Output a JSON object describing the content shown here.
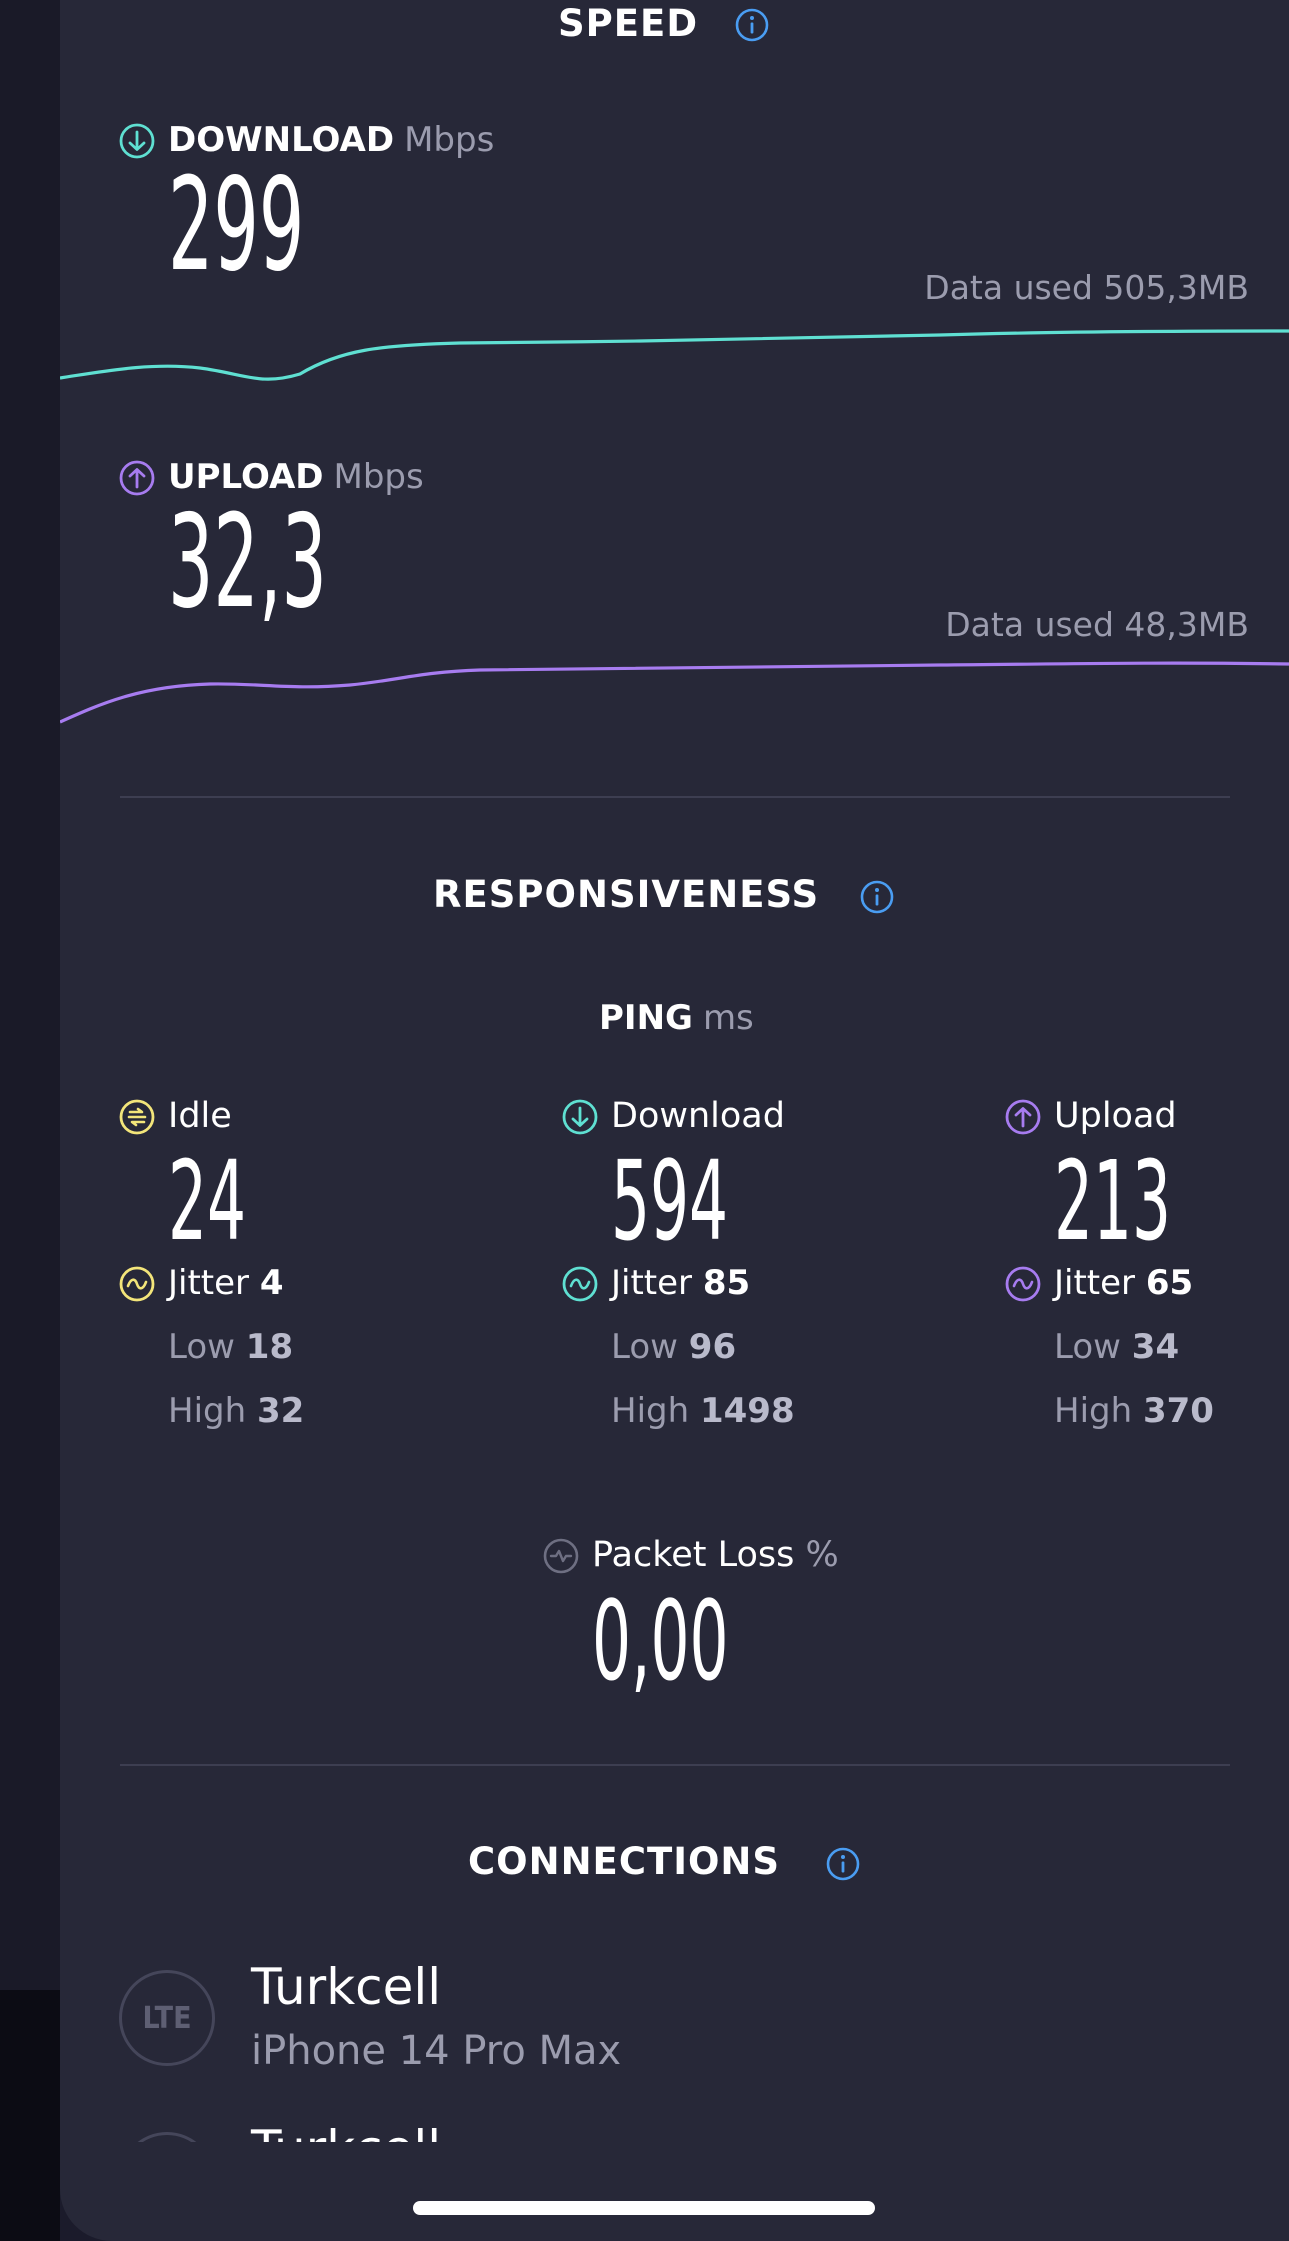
{
  "speed": {
    "title": "SPEED",
    "download": {
      "label": "DOWNLOAD",
      "unit": "Mbps",
      "value": "299",
      "data_used": "Data used 505,3MB",
      "color": "#5fe0d2"
    },
    "upload": {
      "label": "UPLOAD",
      "unit": "Mbps",
      "value": "32,3",
      "data_used": "Data used 48,3MB",
      "color": "#a77cf0"
    }
  },
  "responsiveness": {
    "title": "RESPONSIVENESS",
    "ping_label": "PING",
    "ping_unit": "ms",
    "columns": [
      {
        "name": "Idle",
        "value": "24",
        "jitter_label": "Jitter",
        "jitter": "4",
        "low_label": "Low",
        "low": "18",
        "high_label": "High",
        "high": "32",
        "color": "#f3e57a"
      },
      {
        "name": "Download",
        "value": "594",
        "jitter_label": "Jitter",
        "jitter": "85",
        "low_label": "Low",
        "low": "96",
        "high_label": "High",
        "high": "1498",
        "color": "#5fe0d2"
      },
      {
        "name": "Upload",
        "value": "213",
        "jitter_label": "Jitter",
        "jitter": "65",
        "low_label": "Low",
        "low": "34",
        "high_label": "High",
        "high": "370",
        "color": "#a77cf0"
      }
    ],
    "packet_loss": {
      "label": "Packet Loss",
      "unit": "%",
      "value": "0,00"
    }
  },
  "connections": {
    "title": "CONNECTIONS",
    "items": [
      {
        "badge": "LTE",
        "provider": "Turkcell",
        "device": "iPhone 14 Pro Max"
      },
      {
        "provider": "Turkcell"
      }
    ]
  },
  "colors": {
    "background": "#272838",
    "info_blue": "#4a9df2"
  },
  "icons": {
    "info": "info-icon",
    "download": "download-arrow-icon",
    "upload": "upload-arrow-icon",
    "idle": "idle-icon",
    "jitter": "jitter-icon",
    "packet_loss": "packet-loss-icon"
  }
}
